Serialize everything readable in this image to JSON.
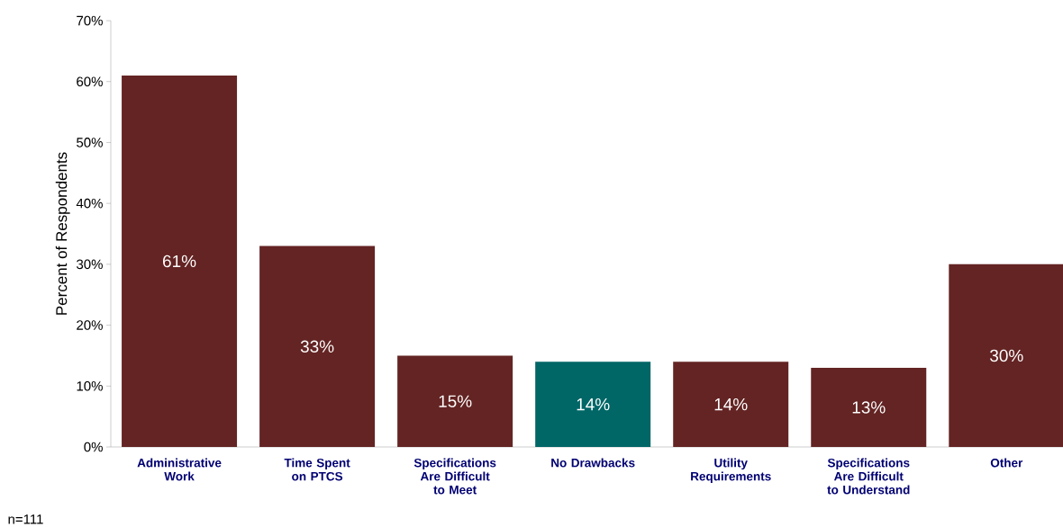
{
  "chart_data": {
    "type": "bar",
    "ylabel": "Percent of Respondents",
    "categories": [
      "Administrative Work",
      "Time Spent on PTCS",
      "Specifications Are Difficult to Meet",
      "No Drawbacks",
      "Utility Requirements",
      "Specifications Are Difficult to Understand",
      "Other"
    ],
    "values": [
      61,
      33,
      15,
      14,
      14,
      13,
      30
    ],
    "value_labels": [
      "61%",
      "33%",
      "15%",
      "14%",
      "14%",
      "13%",
      "30%"
    ],
    "colors": [
      "#632423",
      "#632423",
      "#632423",
      "#006666",
      "#632423",
      "#632423",
      "#632423"
    ],
    "ylim": [
      0,
      70
    ],
    "yticks": [
      {
        "value": 0,
        "label": "0%"
      },
      {
        "value": 10,
        "label": "10%"
      },
      {
        "value": 20,
        "label": "20%"
      },
      {
        "value": 30,
        "label": "30%"
      },
      {
        "value": 40,
        "label": "40%"
      },
      {
        "value": 50,
        "label": "50%"
      },
      {
        "value": 60,
        "label": "60%"
      },
      {
        "value": 70,
        "label": "70%"
      }
    ],
    "annotations": [
      "n=111"
    ]
  }
}
